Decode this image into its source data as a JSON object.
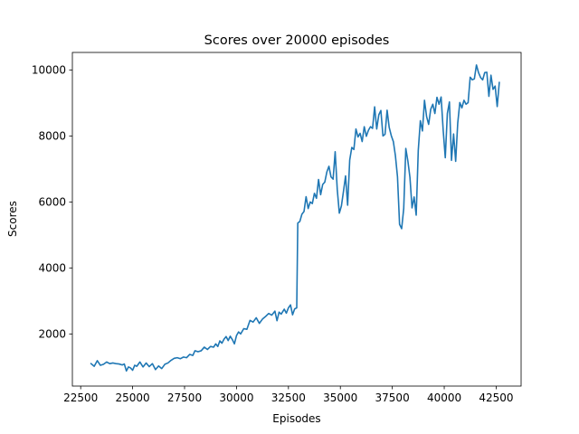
{
  "chart_data": {
    "type": "line",
    "title": "Scores over 20000 episodes",
    "xlabel": "Episodes",
    "ylabel": "Scores",
    "xlim": [
      22100,
      43700
    ],
    "ylim": [
      420,
      10530
    ],
    "xticks": [
      22500,
      25000,
      27500,
      30000,
      32500,
      35000,
      37500,
      40000,
      42500
    ],
    "yticks": [
      2000,
      4000,
      6000,
      8000,
      10000
    ],
    "grid": false,
    "legend": "none",
    "series": [
      {
        "color": "#1f77b4",
        "points": [
          [
            23000,
            1100
          ],
          [
            23150,
            1020
          ],
          [
            23300,
            1190
          ],
          [
            23450,
            1050
          ],
          [
            23600,
            1080
          ],
          [
            23750,
            1150
          ],
          [
            23900,
            1100
          ],
          [
            24050,
            1120
          ],
          [
            24200,
            1100
          ],
          [
            24350,
            1090
          ],
          [
            24500,
            1060
          ],
          [
            24600,
            1090
          ],
          [
            24700,
            880
          ],
          [
            24800,
            1000
          ],
          [
            24900,
            970
          ],
          [
            25000,
            900
          ],
          [
            25100,
            1050
          ],
          [
            25200,
            1020
          ],
          [
            25350,
            1150
          ],
          [
            25500,
            1000
          ],
          [
            25650,
            1120
          ],
          [
            25800,
            1010
          ],
          [
            25950,
            1100
          ],
          [
            26100,
            920
          ],
          [
            26250,
            1030
          ],
          [
            26400,
            950
          ],
          [
            26550,
            1080
          ],
          [
            26700,
            1120
          ],
          [
            26850,
            1200
          ],
          [
            27000,
            1260
          ],
          [
            27150,
            1280
          ],
          [
            27300,
            1250
          ],
          [
            27450,
            1300
          ],
          [
            27600,
            1280
          ],
          [
            27750,
            1380
          ],
          [
            27900,
            1350
          ],
          [
            28000,
            1490
          ],
          [
            28150,
            1460
          ],
          [
            28300,
            1490
          ],
          [
            28450,
            1600
          ],
          [
            28600,
            1530
          ],
          [
            28750,
            1620
          ],
          [
            28900,
            1600
          ],
          [
            29000,
            1700
          ],
          [
            29100,
            1620
          ],
          [
            29200,
            1790
          ],
          [
            29300,
            1720
          ],
          [
            29400,
            1840
          ],
          [
            29500,
            1920
          ],
          [
            29600,
            1800
          ],
          [
            29700,
            1930
          ],
          [
            29800,
            1830
          ],
          [
            29900,
            1700
          ],
          [
            30000,
            1950
          ],
          [
            30100,
            2060
          ],
          [
            30200,
            2000
          ],
          [
            30350,
            2160
          ],
          [
            30500,
            2140
          ],
          [
            30650,
            2410
          ],
          [
            30800,
            2360
          ],
          [
            30950,
            2490
          ],
          [
            31100,
            2320
          ],
          [
            31250,
            2450
          ],
          [
            31400,
            2530
          ],
          [
            31550,
            2620
          ],
          [
            31700,
            2570
          ],
          [
            31850,
            2690
          ],
          [
            31950,
            2400
          ],
          [
            32050,
            2660
          ],
          [
            32150,
            2600
          ],
          [
            32300,
            2750
          ],
          [
            32400,
            2630
          ],
          [
            32500,
            2790
          ],
          [
            32600,
            2880
          ],
          [
            32700,
            2580
          ],
          [
            32800,
            2760
          ],
          [
            32900,
            2790
          ],
          [
            32950,
            5360
          ],
          [
            33050,
            5410
          ],
          [
            33150,
            5630
          ],
          [
            33250,
            5710
          ],
          [
            33350,
            6160
          ],
          [
            33450,
            5800
          ],
          [
            33550,
            6000
          ],
          [
            33650,
            5950
          ],
          [
            33750,
            6260
          ],
          [
            33850,
            6110
          ],
          [
            33950,
            6680
          ],
          [
            34050,
            6220
          ],
          [
            34150,
            6530
          ],
          [
            34250,
            6600
          ],
          [
            34350,
            6910
          ],
          [
            34450,
            7080
          ],
          [
            34550,
            6760
          ],
          [
            34650,
            6690
          ],
          [
            34750,
            7520
          ],
          [
            34850,
            6380
          ],
          [
            34950,
            5660
          ],
          [
            35050,
            5880
          ],
          [
            35150,
            6320
          ],
          [
            35250,
            6790
          ],
          [
            35350,
            5900
          ],
          [
            35450,
            7270
          ],
          [
            35550,
            7650
          ],
          [
            35650,
            7590
          ],
          [
            35750,
            8210
          ],
          [
            35850,
            7970
          ],
          [
            35950,
            8080
          ],
          [
            36050,
            7830
          ],
          [
            36150,
            8280
          ],
          [
            36250,
            7990
          ],
          [
            36350,
            8170
          ],
          [
            36450,
            8280
          ],
          [
            36550,
            8230
          ],
          [
            36650,
            8880
          ],
          [
            36750,
            8210
          ],
          [
            36850,
            8640
          ],
          [
            36950,
            8770
          ],
          [
            37050,
            8000
          ],
          [
            37150,
            8050
          ],
          [
            37250,
            8780
          ],
          [
            37350,
            8260
          ],
          [
            37450,
            8010
          ],
          [
            37550,
            7830
          ],
          [
            37650,
            7400
          ],
          [
            37750,
            6760
          ],
          [
            37850,
            5320
          ],
          [
            37950,
            5190
          ],
          [
            38050,
            5800
          ],
          [
            38150,
            7620
          ],
          [
            38250,
            7240
          ],
          [
            38350,
            6740
          ],
          [
            38450,
            5820
          ],
          [
            38550,
            6150
          ],
          [
            38650,
            5600
          ],
          [
            38750,
            7560
          ],
          [
            38850,
            8460
          ],
          [
            38950,
            8150
          ],
          [
            39050,
            9080
          ],
          [
            39150,
            8590
          ],
          [
            39250,
            8350
          ],
          [
            39350,
            8810
          ],
          [
            39450,
            8960
          ],
          [
            39550,
            8680
          ],
          [
            39650,
            9170
          ],
          [
            39750,
            8960
          ],
          [
            39850,
            9180
          ],
          [
            39950,
            8170
          ],
          [
            40050,
            7340
          ],
          [
            40150,
            8680
          ],
          [
            40250,
            9030
          ],
          [
            40350,
            7260
          ],
          [
            40450,
            8060
          ],
          [
            40550,
            7230
          ],
          [
            40650,
            8390
          ],
          [
            40750,
            9010
          ],
          [
            40850,
            8850
          ],
          [
            40950,
            9080
          ],
          [
            41050,
            8960
          ],
          [
            41150,
            9010
          ],
          [
            41250,
            9780
          ],
          [
            41350,
            9700
          ],
          [
            41450,
            9730
          ],
          [
            41550,
            10150
          ],
          [
            41650,
            9920
          ],
          [
            41750,
            9770
          ],
          [
            41850,
            9700
          ],
          [
            41950,
            9920
          ],
          [
            42050,
            9930
          ],
          [
            42150,
            9200
          ],
          [
            42250,
            9840
          ],
          [
            42350,
            9410
          ],
          [
            42450,
            9510
          ],
          [
            42550,
            8890
          ],
          [
            42650,
            9620
          ]
        ]
      }
    ]
  }
}
